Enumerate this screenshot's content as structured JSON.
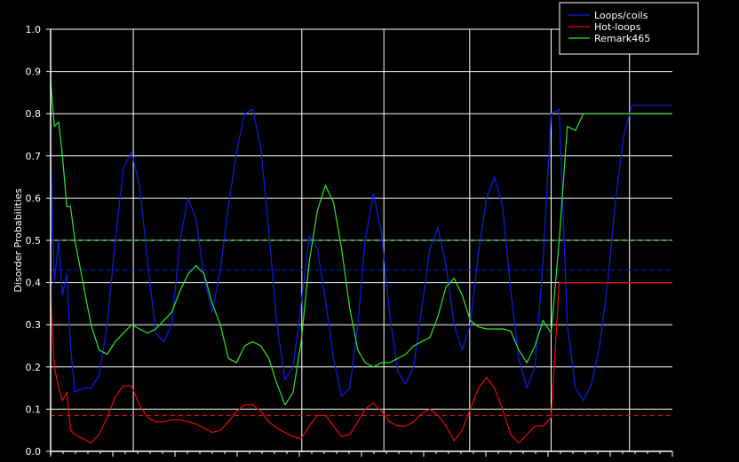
{
  "chart_data": {
    "type": "line",
    "title": "",
    "xlabel": "",
    "ylabel": "Disorder Probabilities",
    "ylim": [
      0,
      1
    ],
    "xlim": [
      0,
      100
    ],
    "yticks": [
      "0.0",
      "0.1",
      "0.2",
      "0.3",
      "0.4",
      "0.5",
      "0.6",
      "0.7",
      "0.8",
      "0.9",
      "1.0"
    ],
    "grid": true,
    "legend_position": "top-right",
    "series": [
      {
        "name": "Loops/coils",
        "color": "#0a1ee6",
        "threshold": 0.43,
        "x": [
          0,
          0.6,
          1.3,
          1.9,
          2.6,
          3.2,
          3.9,
          5.2,
          6.5,
          7.8,
          9.1,
          10.4,
          11.7,
          13,
          14.3,
          15.6,
          16.9,
          18.2,
          19.5,
          20.8,
          22.1,
          23.4,
          24.7,
          26,
          27.3,
          28.6,
          29.9,
          31.2,
          32.5,
          33.8,
          35.1,
          36.4,
          37.7,
          39,
          40.3,
          41.6,
          42.9,
          44.2,
          45.5,
          46.8,
          48.1,
          49.4,
          50.6,
          51.9,
          53.2,
          54.5,
          55.8,
          57.1,
          58.4,
          59.7,
          61,
          62.3,
          63.6,
          64.9,
          66.2,
          67.5,
          68.8,
          70.1,
          71.4,
          72.7,
          74,
          75.3,
          76.6,
          77.9,
          79.2,
          80.5,
          81.8,
          83.1,
          84.4,
          85.7,
          87,
          88.3,
          89.6,
          90.9,
          92.2,
          93.5,
          94.8,
          96.1,
          97.4,
          98.7,
          100
        ],
        "y": [
          0.71,
          0.4,
          0.5,
          0.37,
          0.42,
          0.25,
          0.14,
          0.15,
          0.15,
          0.18,
          0.3,
          0.5,
          0.67,
          0.71,
          0.63,
          0.45,
          0.28,
          0.26,
          0.3,
          0.5,
          0.6,
          0.55,
          0.41,
          0.33,
          0.43,
          0.58,
          0.71,
          0.8,
          0.81,
          0.72,
          0.52,
          0.3,
          0.17,
          0.2,
          0.35,
          0.51,
          0.48,
          0.36,
          0.22,
          0.13,
          0.15,
          0.3,
          0.5,
          0.61,
          0.52,
          0.33,
          0.19,
          0.16,
          0.2,
          0.34,
          0.48,
          0.53,
          0.44,
          0.3,
          0.24,
          0.3,
          0.47,
          0.6,
          0.65,
          0.58,
          0.38,
          0.22,
          0.15,
          0.2,
          0.45,
          0.8,
          0.81,
          0.3,
          0.15,
          0.12,
          0.16,
          0.25,
          0.4,
          0.6,
          0.75,
          0.82,
          0.82,
          0.82,
          0.82,
          0.82,
          0.82
        ]
      },
      {
        "name": "Hot-loops",
        "color": "#e60a0a",
        "threshold": 0.085,
        "x": [
          0,
          0.6,
          1.3,
          1.9,
          2.6,
          3.2,
          3.9,
          5.2,
          6.5,
          7.8,
          9.1,
          10.4,
          11.7,
          13,
          14.3,
          15.6,
          16.9,
          18.2,
          19.5,
          20.8,
          22.1,
          23.4,
          24.7,
          26,
          27.3,
          28.6,
          29.9,
          31.2,
          32.5,
          33.8,
          35.1,
          36.4,
          37.7,
          39,
          40.3,
          41.6,
          42.9,
          44.2,
          45.5,
          46.8,
          48.1,
          49.4,
          50.6,
          51.9,
          53.2,
          54.5,
          55.8,
          57.1,
          58.4,
          59.7,
          61,
          62.3,
          63.6,
          64.9,
          66.2,
          67.5,
          68.8,
          70.1,
          71.4,
          72.7,
          74,
          75.3,
          76.6,
          77.9,
          79.2,
          80.5,
          81.8,
          83.1,
          84.4,
          85.7,
          87,
          88.3,
          89.6,
          90.9,
          92.2,
          93.5,
          94.8,
          96.1,
          97.4,
          98.7,
          100
        ],
        "y": [
          0.36,
          0.2,
          0.15,
          0.12,
          0.14,
          0.05,
          0.04,
          0.03,
          0.02,
          0.04,
          0.08,
          0.13,
          0.155,
          0.155,
          0.11,
          0.08,
          0.07,
          0.07,
          0.075,
          0.075,
          0.07,
          0.065,
          0.055,
          0.045,
          0.05,
          0.07,
          0.095,
          0.11,
          0.11,
          0.095,
          0.07,
          0.055,
          0.045,
          0.035,
          0.03,
          0.06,
          0.085,
          0.085,
          0.06,
          0.035,
          0.04,
          0.07,
          0.1,
          0.115,
          0.095,
          0.07,
          0.06,
          0.06,
          0.07,
          0.09,
          0.1,
          0.085,
          0.06,
          0.025,
          0.05,
          0.1,
          0.15,
          0.175,
          0.15,
          0.1,
          0.04,
          0.02,
          0.04,
          0.06,
          0.06,
          0.08,
          0.4,
          0.4,
          0.4,
          0.4,
          0.4,
          0.4,
          0.4,
          0.4,
          0.4,
          0.4,
          0.4,
          0.4,
          0.4,
          0.4,
          0.4
        ]
      },
      {
        "name": "Remark465",
        "color": "#2ee62e",
        "threshold": 0.5,
        "x": [
          0,
          0.6,
          1.3,
          1.9,
          2.6,
          3.2,
          3.9,
          5.2,
          6.5,
          7.8,
          9.1,
          10.4,
          11.7,
          13,
          14.3,
          15.6,
          16.9,
          18.2,
          19.5,
          20.8,
          22.1,
          23.4,
          24.7,
          26,
          27.3,
          28.6,
          29.9,
          31.2,
          32.5,
          33.8,
          35.1,
          36.4,
          37.7,
          39,
          40.3,
          41.6,
          42.9,
          44.2,
          45.5,
          46.8,
          48.1,
          49.4,
          50.6,
          51.9,
          53.2,
          54.5,
          55.8,
          57.1,
          58.4,
          59.7,
          61,
          62.3,
          63.6,
          64.9,
          66.2,
          67.5,
          68.8,
          70.1,
          71.4,
          72.7,
          74,
          75.3,
          76.6,
          77.9,
          79.2,
          80.5,
          81.8,
          83.1,
          84.4,
          85.7,
          87,
          88.3,
          89.6,
          90.9,
          92.2,
          93.5,
          94.8,
          96.1,
          97.4,
          98.7,
          100
        ],
        "y": [
          0.88,
          0.77,
          0.78,
          0.7,
          0.58,
          0.58,
          0.5,
          0.4,
          0.3,
          0.24,
          0.23,
          0.26,
          0.28,
          0.3,
          0.29,
          0.28,
          0.29,
          0.31,
          0.33,
          0.38,
          0.42,
          0.44,
          0.42,
          0.35,
          0.3,
          0.22,
          0.21,
          0.25,
          0.26,
          0.25,
          0.22,
          0.16,
          0.11,
          0.14,
          0.26,
          0.45,
          0.57,
          0.63,
          0.59,
          0.48,
          0.34,
          0.24,
          0.21,
          0.2,
          0.21,
          0.21,
          0.22,
          0.23,
          0.25,
          0.26,
          0.27,
          0.32,
          0.39,
          0.41,
          0.37,
          0.31,
          0.295,
          0.29,
          0.29,
          0.29,
          0.285,
          0.24,
          0.21,
          0.25,
          0.31,
          0.28,
          0.5,
          0.77,
          0.76,
          0.8,
          0.8,
          0.8,
          0.8,
          0.8,
          0.8,
          0.8,
          0.8,
          0.8,
          0.8,
          0.8,
          0.8
        ]
      }
    ]
  }
}
